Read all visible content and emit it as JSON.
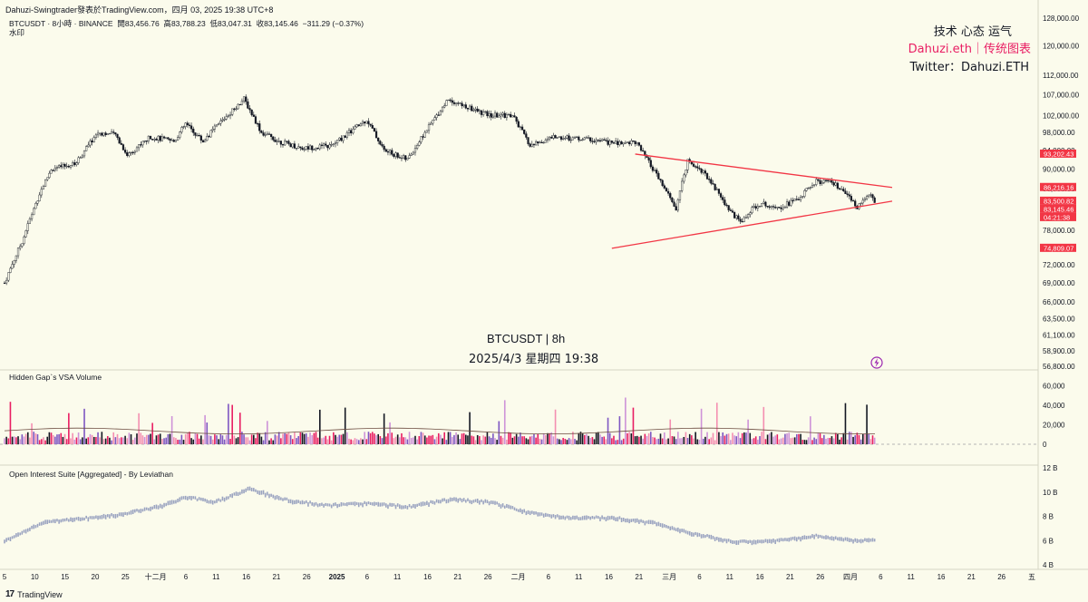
{
  "header": {
    "publisher": "Dahuzi-Swingtrader發表於TradingView.com，四月 03, 2025 19:38 UTC+8",
    "symbol": "BTCUSDT · 8小時 · BINANCE",
    "open_label": "開",
    "open": "83,456.76",
    "high_label": "高",
    "high": "83,788.23",
    "low_label": "低",
    "low": "83,047.31",
    "close_label": "收",
    "close": "83,145.46",
    "change": "−311.29 (−0.37%)",
    "watermark_label": "水印"
  },
  "notes": {
    "line1": "技术 心态 运气",
    "line2": "Dahuzi.eth｜传统图表",
    "line3": "Twitter：Dahuzi.ETH"
  },
  "center_text": {
    "line1": "BTCUSDT | 8h",
    "line2": "2025/4/3 星期四 19:38"
  },
  "panes": {
    "volume_title": "Hidden Gap`s VSA Volume",
    "oi_title": "Open Interest Suite [Aggregated] - By Leviathan"
  },
  "price_axis": {
    "ticks": [
      "128,000.00",
      "120,000.00",
      "112,000.00",
      "107,000.00",
      "102,000.00",
      "98,000.00",
      "94,000.00",
      "90,000.00",
      "86,000.00",
      "82,000.00",
      "78,000.00",
      "75,000.00",
      "72,000.00",
      "69,000.00",
      "66,000.00",
      "63,500.00",
      "61,100.00",
      "58,900.00",
      "56,800.00"
    ],
    "labels": [
      {
        "text": "93,202.43",
        "color": "#f23645"
      },
      {
        "text": "86,216.16",
        "color": "#f23645"
      },
      {
        "text": "83,500.82",
        "color": "#f23645"
      },
      {
        "text": "83,145.46",
        "color": "#f23645"
      },
      {
        "text": "04:21:38",
        "color": "#f23645"
      },
      {
        "text": "74,809.07",
        "color": "#f23645"
      }
    ]
  },
  "volume_axis": {
    "ticks": [
      "60,000",
      "40,000",
      "20,000",
      "0"
    ]
  },
  "oi_axis": {
    "ticks": [
      "12 B",
      "10 B",
      "8 B",
      "6 B",
      "4 B"
    ]
  },
  "time_axis": {
    "ticks": [
      "5",
      "10",
      "15",
      "20",
      "25",
      "十二月",
      "6",
      "11",
      "16",
      "21",
      "26",
      "2025",
      "6",
      "11",
      "16",
      "21",
      "26",
      "二月",
      "6",
      "11",
      "16",
      "21",
      "三月",
      "6",
      "11",
      "16",
      "21",
      "26",
      "四月",
      "6",
      "11",
      "16",
      "21",
      "26",
      "五"
    ]
  },
  "footer": {
    "logo": "17",
    "brand": "TradingView"
  },
  "icons": {
    "lightning": "lightning-icon"
  },
  "colors": {
    "up": "#26a69a",
    "down": "#ef5350",
    "candle": "#131722",
    "trendline": "#f23645",
    "accent": "#e91e63"
  },
  "chart_data": [
    {
      "type": "candlestick",
      "title": "BTCUSDT | 8h",
      "x_range": [
        "2024-11-05",
        "2025-05-01"
      ],
      "ylim": [
        56800,
        128000
      ],
      "scale": "log",
      "trendlines": [
        {
          "name": "",
          "from": {
            "x": "2025-02-21",
            "y": 93202.43
          },
          "to": {
            "x": "2025-04-06",
            "y": 86216.16
          }
        },
        {
          "name": "",
          "from": {
            "x": "2025-02-17",
            "y": 74809.07
          },
          "to": {
            "x": "2025-04-06",
            "y": 83500.82
          }
        }
      ],
      "close_path": [
        [
          "2024-11-05",
          69000
        ],
        [
          "2024-11-08",
          76000
        ],
        [
          "2024-11-11",
          85000
        ],
        [
          "2024-11-13",
          90000
        ],
        [
          "2024-11-17",
          91000
        ],
        [
          "2024-11-21",
          98000
        ],
        [
          "2024-11-24",
          97500
        ],
        [
          "2024-11-26",
          93000
        ],
        [
          "2024-11-30",
          97000
        ],
        [
          "2024-12-04",
          96000
        ],
        [
          "2024-12-06",
          100000
        ],
        [
          "2024-12-09",
          96000
        ],
        [
          "2024-12-12",
          100500
        ],
        [
          "2024-12-16",
          106000
        ],
        [
          "2024-12-19",
          98000
        ],
        [
          "2024-12-22",
          96000
        ],
        [
          "2024-12-26",
          94500
        ],
        [
          "2024-12-31",
          95000
        ],
        [
          "2025-01-03",
          98000
        ],
        [
          "2025-01-06",
          101000
        ],
        [
          "2025-01-09",
          94000
        ],
        [
          "2025-01-13",
          92000
        ],
        [
          "2025-01-17",
          100000
        ],
        [
          "2025-01-20",
          106000
        ],
        [
          "2025-01-23",
          104000
        ],
        [
          "2025-01-27",
          102000
        ],
        [
          "2025-01-31",
          102000
        ],
        [
          "2025-02-03",
          95000
        ],
        [
          "2025-02-07",
          97000
        ],
        [
          "2025-02-13",
          96500
        ],
        [
          "2025-02-18",
          95500
        ],
        [
          "2025-02-21",
          96000
        ],
        [
          "2025-02-25",
          88000
        ],
        [
          "2025-02-28",
          82000
        ],
        [
          "2025-03-02",
          92000
        ],
        [
          "2025-03-05",
          89000
        ],
        [
          "2025-03-09",
          82000
        ],
        [
          "2025-03-11",
          79500
        ],
        [
          "2025-03-14",
          83000
        ],
        [
          "2025-03-18",
          82500
        ],
        [
          "2025-03-21",
          84000
        ],
        [
          "2025-03-24",
          87500
        ],
        [
          "2025-03-27",
          87000
        ],
        [
          "2025-03-31",
          82500
        ],
        [
          "2025-04-02",
          85000
        ],
        [
          "2025-04-03",
          83145.46
        ]
      ]
    },
    {
      "type": "bar",
      "title": "Hidden Gap`s VSA Volume",
      "ylim": [
        0,
        70000
      ],
      "note": "volume bars, one per 8h candle"
    },
    {
      "type": "line",
      "title": "Open Interest Suite [Aggregated] - By Leviathan",
      "ylabel_unit": "B",
      "ylim": [
        4,
        12
      ],
      "x": [
        "2024-11-05",
        "2024-11-12",
        "2024-11-18",
        "2024-11-25",
        "2024-12-02",
        "2024-12-06",
        "2024-12-11",
        "2024-12-17",
        "2024-12-23",
        "2024-12-30",
        "2025-01-06",
        "2025-01-13",
        "2025-01-20",
        "2025-01-27",
        "2025-02-03",
        "2025-02-10",
        "2025-02-17",
        "2025-02-24",
        "2025-03-03",
        "2025-03-10",
        "2025-03-17",
        "2025-03-24",
        "2025-03-31",
        "2025-04-03"
      ],
      "values": [
        6.0,
        7.6,
        7.8,
        8.2,
        8.9,
        9.6,
        9.2,
        10.3,
        9.4,
        8.9,
        9.1,
        8.8,
        9.4,
        9.2,
        8.3,
        7.9,
        7.9,
        7.5,
        6.6,
        5.9,
        6.0,
        6.4,
        6.0,
        6.1
      ]
    }
  ]
}
